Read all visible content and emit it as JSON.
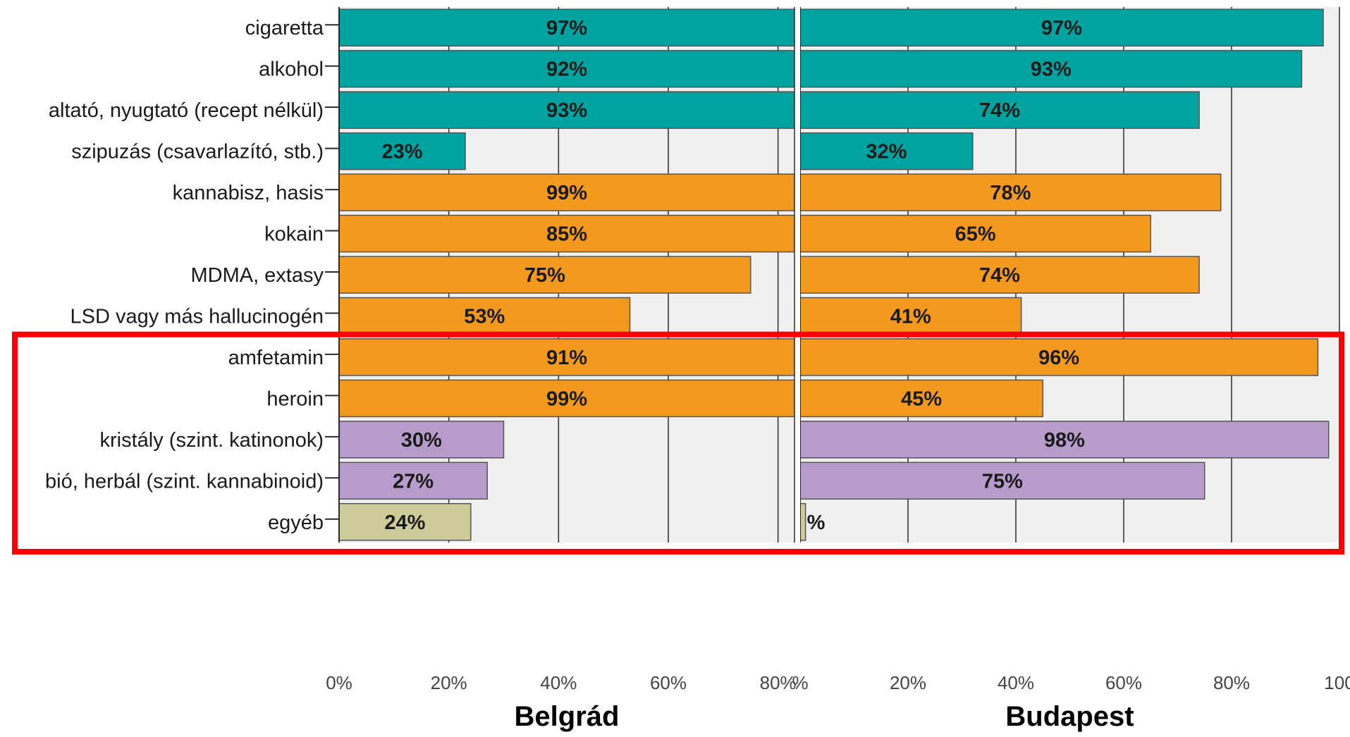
{
  "chart_data": {
    "type": "bar",
    "orientation": "horizontal",
    "grid": true,
    "categories": [
      "cigaretta",
      "alkohol",
      "altató, nyugtató (recept nélkül)",
      "szipuzás (csavarlazító, stb.)",
      "kannabisz, hasis",
      "kokain",
      "MDMA, extasy",
      "LSD vagy más hallucinogén",
      "amfetamin",
      "heroin",
      "kristály (szint. katinonok)",
      "bió, herbál (szint. kannabinoid)",
      "egyéb"
    ],
    "bar_colors": [
      "#00a3a0",
      "#00a3a0",
      "#00a3a0",
      "#00a3a0",
      "#f39a1e",
      "#f39a1e",
      "#f39a1e",
      "#f39a1e",
      "#f39a1e",
      "#f39a1e",
      "#b79ccb",
      "#b79ccb",
      "#cfcb98"
    ],
    "bar_border_color": "#555555",
    "panel_background": "#f0f0f0",
    "grid_color": "#2b2b2b",
    "highlight": {
      "color": "#ff0000",
      "from_category": "amfetamin",
      "to_category": "egyéb"
    },
    "panels": [
      {
        "name": "Belgrád",
        "xlim": [
          0,
          83
        ],
        "xticks": [
          "0%",
          "20%",
          "40%",
          "60%",
          "80%"
        ],
        "xtick_values": [
          0,
          20,
          40,
          60,
          80
        ],
        "values": [
          97,
          92,
          93,
          23,
          99,
          85,
          75,
          53,
          91,
          99,
          30,
          27,
          24
        ],
        "value_labels": [
          "97%",
          "92%",
          "93%",
          "23%",
          "99%",
          "85%",
          "75%",
          "53%",
          "91%",
          "99%",
          "30%",
          "27%",
          "24%"
        ]
      },
      {
        "name": "Budapest",
        "xlim": [
          0,
          100
        ],
        "xticks": [
          "%",
          "20%",
          "40%",
          "60%",
          "80%",
          "100"
        ],
        "xtick_values": [
          0,
          20,
          40,
          60,
          80,
          100
        ],
        "values": [
          97,
          93,
          74,
          32,
          78,
          65,
          74,
          41,
          96,
          45,
          98,
          75,
          1
        ],
        "value_labels": [
          "97%",
          "93%",
          "74%",
          "32%",
          "78%",
          "65%",
          "74%",
          "41%",
          "96%",
          "45%",
          "98%",
          "75%",
          "%"
        ]
      }
    ]
  }
}
